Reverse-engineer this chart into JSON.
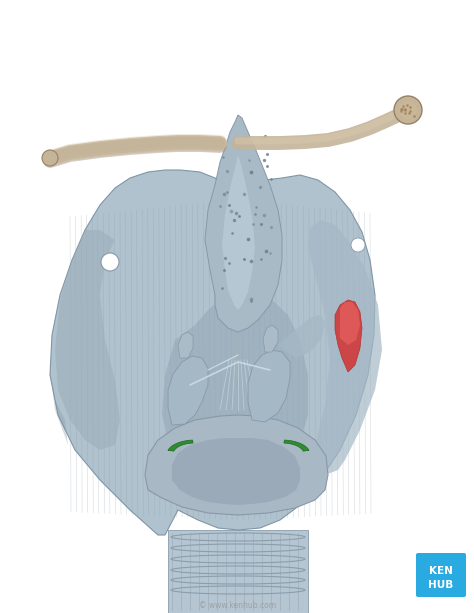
{
  "background_color": "#ffffff",
  "fig_width": 4.74,
  "fig_height": 6.13,
  "dpi": 100,
  "larynx_base": "#a8b8c4",
  "larynx_light": "#c8d8e4",
  "larynx_mid": "#9aaab6",
  "larynx_dark": "#7a8f9e",
  "larynx_shadow": "#6b7f8e",
  "larynx_highlight": "#d8e8f0",
  "epiglottis_color": "#9baab5",
  "epiglottis_light": "#b8cad6",
  "hyoid_color": "#c4b49a",
  "hyoid_dark": "#9a8060",
  "hyoid_light": "#d8c8aa",
  "red_highlight": "#d04040",
  "red_highlight2": "#e86060",
  "green_highlight": "#2a8a2a",
  "green_highlight2": "#44aa44",
  "trachea_color": "#b0c0cc",
  "kenhub_blue": "#29abe2",
  "kenhub_text": "#ffffff",
  "watermark_text": "© www.kenhub.com",
  "watermark_color": "#999999",
  "watermark_fontsize": 5.5
}
